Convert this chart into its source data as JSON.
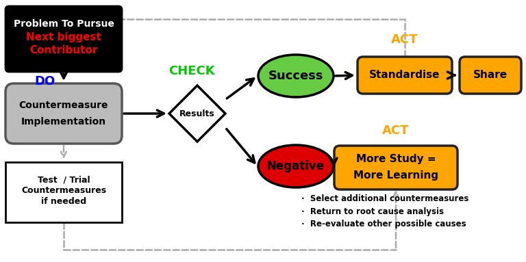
{
  "bg_color": "#ffffff",
  "colors": {
    "black_box_bg": "#000000",
    "red_text": "#ff0000",
    "blue_text": "#0000ff",
    "green_text": "#00cc00",
    "orange_text": "#ffa500",
    "gray_box_bg": "#bbbbbb",
    "gray_edge": "#555555",
    "green_ellipse": "#66cc44",
    "red_ellipse": "#dd0000",
    "orange_box": "#ffa500",
    "orange_edge": "#222222",
    "dashed_color": "#aaaaaa",
    "arrow_color": "#000000"
  },
  "bullet_texts": [
    "Select additional countermeasures",
    "Return to root cause analysis",
    "Re-evaluate other possible causes"
  ]
}
